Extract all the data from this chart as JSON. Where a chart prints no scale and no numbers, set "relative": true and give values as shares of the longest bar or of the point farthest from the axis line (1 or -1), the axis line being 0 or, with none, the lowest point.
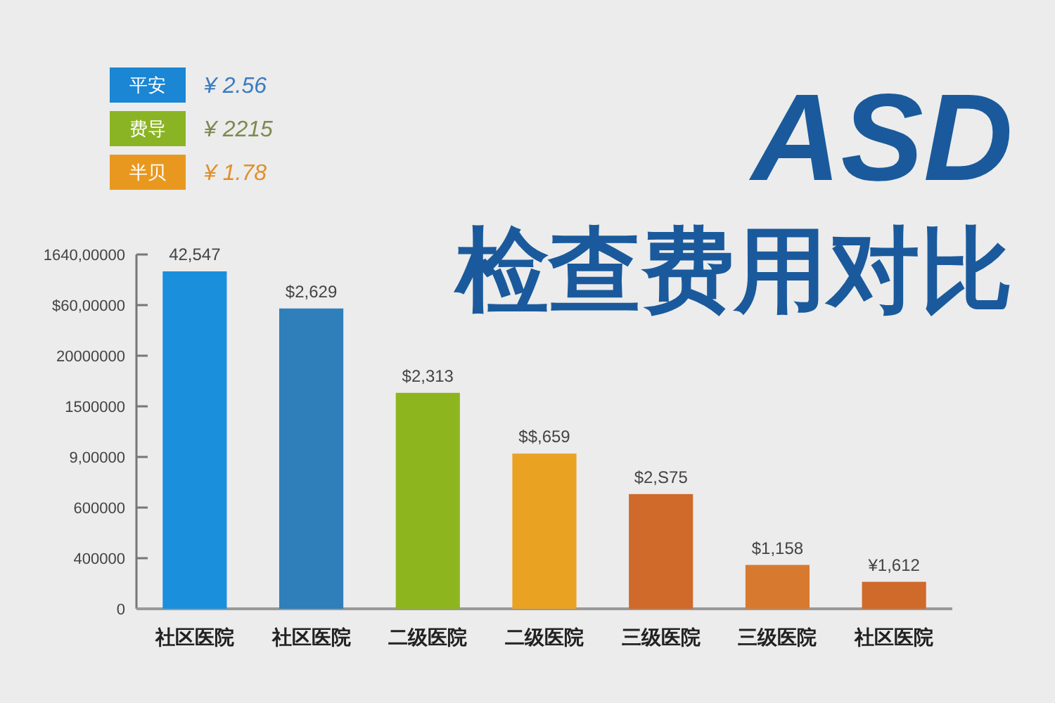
{
  "chart_data": {
    "type": "bar",
    "title": "ASD",
    "subtitle": "检查费用对比",
    "categories": [
      "社区医院",
      "社区医院",
      "二级医院",
      "二级医院",
      "三级医院",
      "三级医院",
      "社区医院"
    ],
    "relative": true,
    "values": [
      1,
      0.89,
      0.64,
      0.46,
      0.34,
      0.13,
      0.08
    ],
    "colors": [
      "#1a8fdc",
      "#2e7fba",
      "#8db51e",
      "#eaa223",
      "#cf6a2a",
      "#d77a30",
      "#d06a2a"
    ],
    "annotations": [
      "平安",
      "¥ 2.56",
      "费导",
      "¥ 2215",
      "半贝",
      "¥ 1.78",
      "0",
      "400000",
      "600000",
      "9,00000",
      "1500000",
      "20000000",
      "$60,00000",
      "1640,00000",
      "42,547",
      "$2,629",
      "$2,313",
      "$$,659",
      "$2,S75",
      "$1,158",
      "¥1,612"
    ]
  }
}
